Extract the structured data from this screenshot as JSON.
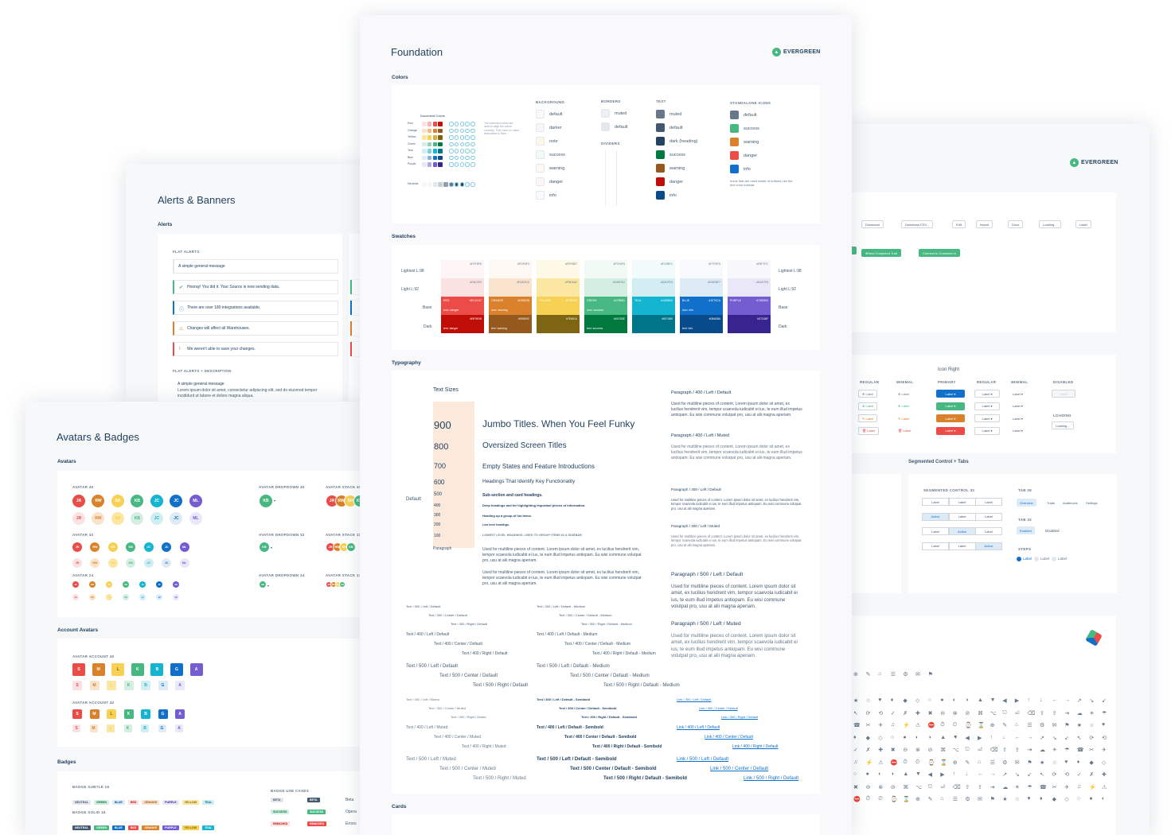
{
  "boards": {
    "foundation": {
      "title": "Foundation",
      "logo": "EVERGREEN"
    },
    "components": {
      "logo": "EVERGREEN"
    },
    "alerts": {
      "title": "Alerts & Banners"
    },
    "avatars": {
      "title": "Avatars & Badges"
    }
  },
  "foundation": {
    "colors_label": "Colors",
    "swatches_label": "Swatches",
    "typography_label": "Typography",
    "cards_label": "Cards",
    "doc_colors": "Document Colors",
    "doc_rows": [
      "Red",
      "Orange",
      "Yellow",
      "Green",
      "Teal",
      "Blue",
      "Purple",
      "Neutrals"
    ],
    "doc_note": "The extended colors are used to align the colors correctly. They have no value associated to them.",
    "background": {
      "title": "BACKGROUND",
      "items": [
        "default",
        "darker",
        "note",
        "success",
        "warning",
        "danger",
        "info"
      ],
      "colors": [
        "#f9f9fb",
        "#f5f6f7",
        "#fef8e7",
        "#f1faf5",
        "#fef8f2",
        "#fef6f6",
        "#f7f9fd"
      ]
    },
    "borders": {
      "title": "BORDERS",
      "items": [
        "muted",
        "default"
      ],
      "colors": [
        "#edf0f2",
        "#e4e7eb"
      ]
    },
    "dividers": {
      "title": "DIVIDERS"
    },
    "text": {
      "title": "TEXT",
      "items": [
        "muted",
        "default",
        "dark (heading)",
        "success",
        "warning",
        "danger",
        "info"
      ],
      "colors": [
        "#66788a",
        "#425a70",
        "#234361",
        "#00783e",
        "#95591e",
        "#bf0e08",
        "#084b8a"
      ]
    },
    "icons": {
      "title": "STANDALONE ICONS",
      "items": [
        "default",
        "success",
        "warning",
        "danger",
        "info"
      ],
      "colors": [
        "#66788a",
        "#47b881",
        "#d9822b",
        "#ec4c47",
        "#1070ca"
      ],
      "note": "Icons that are used inside of buttons use the text color instead."
    },
    "swatch_rows_left": [
      "Lightest L:98",
      "Light L:92",
      "Base",
      "Dark"
    ],
    "swatch_rows_right": [
      "Lightest L:98",
      "Light L:92",
      "Base",
      "Dark"
    ],
    "swatches": [
      {
        "name": "RED",
        "cols": [
          "#fef6f6",
          "#fae2e2",
          "#ec4c47",
          "#bf0e08"
        ],
        "hex": [
          "#FEF6F6",
          "#FAE2E2",
          "#EC4C47",
          "#BF0E08"
        ],
        "base_label": "icon: danger",
        "dark_label": "text: danger"
      },
      {
        "name": "ORANGE",
        "cols": [
          "#fdf8f3",
          "#fae3cd",
          "#d9822b",
          "#95591e"
        ],
        "hex": [
          "#FDF8F3",
          "#FAE3CD",
          "#D9822B",
          "#95591E"
        ],
        "base_label": "icon: warning",
        "dark_label": "text: warning"
      },
      {
        "name": "YELLOW",
        "cols": [
          "#fef8e7",
          "#fbe6a2",
          "#f7d154",
          "#7e6514"
        ],
        "hex": [
          "#FEF8E7",
          "#FBE6A2",
          "#F7D154",
          "#7E6514"
        ],
        "base_label": "",
        "dark_label": ""
      },
      {
        "name": "GREEN",
        "cols": [
          "#f1faf5",
          "#d4eee2",
          "#47b881",
          "#00783e"
        ],
        "hex": [
          "#F1FAF5",
          "#D4EEE2",
          "#47B881",
          "#00783E"
        ],
        "base_label": "icon: success",
        "dark_label": "text: success"
      },
      {
        "name": "TEAL",
        "cols": [
          "#f1fbfc",
          "#d2eef3",
          "#14b5d0",
          "#007489"
        ],
        "hex": [
          "#F1FBFC",
          "#D2EEF3",
          "#14B5D0",
          "#007489"
        ],
        "base_label": "",
        "dark_label": ""
      },
      {
        "name": "BLUE",
        "cols": [
          "#f7f9fd",
          "#ddebf7",
          "#1070ca",
          "#084b8a"
        ],
        "hex": [
          "#F7F9FD",
          "#DDEBF7",
          "#1070CA",
          "#084B8A"
        ],
        "base_label": "icon: info",
        "dark_label": "text: info"
      },
      {
        "name": "PURPLE",
        "cols": [
          "#f8f7fc",
          "#eae7f8",
          "#735dd0",
          "#37248f"
        ],
        "hex": [
          "#F8F7FC",
          "#EAE7F8",
          "#735DD0",
          "#37248F"
        ],
        "base_label": "",
        "dark_label": ""
      }
    ],
    "typo": {
      "text_sizes": "Text Sizes",
      "default_label": "Default",
      "sizes": [
        {
          "num": "900",
          "sample": "Jumbo Titles. When You Feel Funky"
        },
        {
          "num": "800",
          "sample": "Oversized Screen Titles"
        },
        {
          "num": "700",
          "sample": "Empty States and Feature Introductions"
        },
        {
          "num": "600",
          "sample": "Headings That Identify Key Functionality"
        },
        {
          "num": "500",
          "sample": "Sub-section and card headings."
        },
        {
          "num": "400",
          "sample": "Deep headings and for highlighting important pieces of information."
        },
        {
          "num": "300",
          "sample": "Heading up a group of list items."
        },
        {
          "num": "200",
          "sample": "Low level headings."
        },
        {
          "num": "100",
          "sample": "LOWEST LEVEL HEADINGS. USED TO GROUP ITEMS IN A SIDEBAR."
        }
      ],
      "paragraph": "Paragraph",
      "para_text": "Used for multiline pieces of content. Lorem ipsum dolor sit amet, ex lucilius hendrerit vim, tempor scaevola iudicabit ei ius, te eum illud impetus antiopam. Eu wisi commune volutpat pro, usu at alii magna aperiam.",
      "right_heads": [
        "Paragraph / 400 / Left / Default",
        "Paragraph / 400 / Left / Muted",
        "Paragraph / 300 / Left / Default",
        "Paragraph / 300 / Left / Muted",
        "Paragraph / 500 / Left / Default",
        "Paragraph / 500 / Left / Muted"
      ],
      "text_samples_a": [
        "Text / 300 / Left / Default",
        "Text / 300 / Center / Default",
        "Text / 300 / Right / Default",
        "Text / 400 / Left / Default",
        "Text / 400 / Center / Default",
        "Text / 400 / Right / Default",
        "Text / 500 / Left / Default",
        "Text / 500 / Center / Default",
        "Text / 500 / Right / Default"
      ],
      "text_samples_b": [
        "Text / 300 / Left / Default - Medium",
        "Text / 300 / Center / Default - Medium",
        "Text / 300 / Right / Default - Medium",
        "Text / 400 / Left / Default - Medium",
        "Text / 400 / Center / Default - Medium",
        "Text / 400 / Right / Default - Medium",
        "Text / 500 / Left / Default - Medium",
        "Text / 500 / Center / Default - Medium",
        "Text / 500 / Right / Default - Medium"
      ],
      "muted_a": [
        "Text / 300 / Left / Muted",
        "Text / 300 / Center / Muted",
        "Text / 300 / Right / Muted",
        "Text / 400 / Left / Muted",
        "Text / 400 / Center / Muted",
        "Text / 400 / Right / Muted",
        "Text / 500 / Left / Muted",
        "Text / 500 / Center / Muted",
        "Text / 500 / Right / Muted"
      ],
      "semi_b": [
        "Text / 300 / Left / Default - Semibold",
        "Text / 300 / Center / Default - Semibold",
        "Text / 300 / Right / Default - Semibold",
        "Text / 400 / Left / Default - Semibold",
        "Text / 400 / Center / Default - Semibold",
        "Text / 400 / Right / Default - Semibold",
        "Text / 500 / Left / Default - Semibold",
        "Text / 500 / Center / Default - Semibold",
        "Text / 500 / Right / Default - Semibold"
      ],
      "links": [
        "Link / 300 / Left / Default",
        "Link / 300 / Center / Default",
        "Link / 300 / Right / Default",
        "Link / 400 / Left / Default",
        "Link / 400 / Center / Default",
        "Link / 400 / Right / Default",
        "Link / 500 / Left / Default",
        "Link / 500 / Center / Default",
        "Link / 500 / Right / Default"
      ]
    }
  },
  "components": {
    "top_buttons": [
      "Download",
      "Download CSV...",
      "Edit",
      "Import",
      "Docs",
      "Loading...",
      "Label"
    ],
    "green_buttons": [
      "New Computed Trait",
      "Connect to Customer.io"
    ],
    "icon_right": "Icon Right",
    "headers": [
      "REGULAR",
      "MINIMAL",
      "PRIMARY",
      "REGULAR",
      "MINIMAL",
      "DISABLED"
    ],
    "label": "Label",
    "loading": "LOADING",
    "loading_btn": "Loading...",
    "segmented_title": "Segmented Control + Tabs",
    "seg_label": "SEGMENTED CONTROL 32",
    "tab28": "TAB 28",
    "tabs": [
      "Overview",
      "Traits",
      "Audiences",
      "Settings"
    ],
    "tab32": "TAB 32",
    "tab32_items": [
      "Enabled",
      "Disabled"
    ],
    "steps": "STEPS",
    "active": "Active"
  },
  "alerts": {
    "section": "Alerts",
    "flat": "FLAT ALERTS",
    "items": [
      "A simple general message",
      "Hooray! You did it. Your Source is now sending data.",
      "There are over 180 integrations available.",
      "Changes will affect all Warehouses.",
      "We weren't able to save your changes."
    ],
    "flat_desc": "FLAT ALERTS + DESCRIPTION",
    "desc_title": "A simple general message",
    "desc_body": "Lorem ipsum dolor sit amet, consectetur adipiscing elit, sed do eiusmod tempor incididunt ut labore et dolore magna aliqua."
  },
  "avatars": {
    "section": "Avatars",
    "a40": "AVATAR 40",
    "a32": "AVATAR 32",
    "a24": "AVATAR 24",
    "dd40": "AVATAR DROPDOWN 40",
    "dd32": "AVATAR DROPDOWN 32",
    "dd24": "AVATAR DROPDOWN 24",
    "st40": "AVATAR STACK 40",
    "st32": "AVATAR STACK 32",
    "st24": "AVATAR STACK 24",
    "initials": [
      "JR",
      "RW",
      "SH",
      "KB",
      "JC",
      "JC",
      "ML"
    ],
    "colors": [
      "#ec4c47",
      "#d9822b",
      "#f7d154",
      "#47b881",
      "#14b5d0",
      "#1070ca",
      "#735dd0"
    ],
    "light": [
      "#fae2e2",
      "#fae3cd",
      "#fbe6a2",
      "#d4eee2",
      "#d2eef3",
      "#ddebf7",
      "#eae7f8"
    ],
    "account_section": "Account Avatars",
    "acc40": "AVATAR ACCOUNT 40",
    "acc32": "AVATAR ACCOUNT 32",
    "acc_letters": [
      "S",
      "M",
      "L",
      "K",
      "B",
      "G",
      "A"
    ],
    "kb": "KB",
    "badges_section": "Badges",
    "subtle": "BADGE SUBTLE 16",
    "solid": "BADGE SOLID 16",
    "badge_names": [
      "NEUTRAL",
      "GREEN",
      "BLUE",
      "RED",
      "ORANGE",
      "PURPLE",
      "YELLOW",
      "TEAL"
    ],
    "use_cases": "BADGE USE CASES",
    "cases": [
      [
        "BETA",
        "Beta"
      ],
      [
        "SUCCESS",
        "Opera"
      ],
      [
        "REMOVED",
        "Errors"
      ]
    ]
  }
}
